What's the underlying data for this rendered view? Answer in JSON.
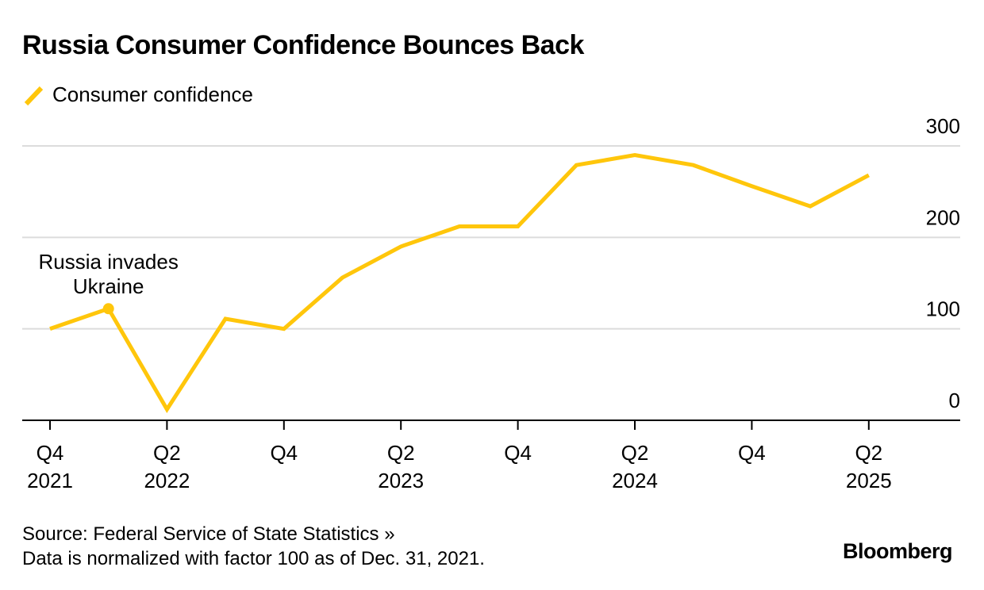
{
  "chart_data": {
    "type": "line",
    "title": "Russia Consumer Confidence Bounces Back",
    "xlabel": "",
    "ylabel": "",
    "ylim": [
      0,
      300
    ],
    "yticks": [
      0,
      100,
      200,
      300
    ],
    "grid": true,
    "legend_position": "top-left",
    "x": [
      "Q4 2021",
      "Q1 2022",
      "Q2 2022",
      "Q3 2022",
      "Q4 2022",
      "Q1 2023",
      "Q2 2023",
      "Q3 2023",
      "Q4 2023",
      "Q1 2024",
      "Q2 2024",
      "Q3 2024",
      "Q4 2024",
      "Q1 2025",
      "Q2 2025"
    ],
    "xtick_labels": [
      {
        "index": 0,
        "line1": "Q4",
        "line2": "2021"
      },
      {
        "index": 2,
        "line1": "Q2",
        "line2": "2022"
      },
      {
        "index": 4,
        "line1": "Q4",
        "line2": ""
      },
      {
        "index": 6,
        "line1": "Q2",
        "line2": "2023"
      },
      {
        "index": 8,
        "line1": "Q4",
        "line2": ""
      },
      {
        "index": 10,
        "line1": "Q2",
        "line2": "2024"
      },
      {
        "index": 12,
        "line1": "Q4",
        "line2": ""
      },
      {
        "index": 14,
        "line1": "Q2",
        "line2": "2025"
      }
    ],
    "series": [
      {
        "name": "Consumer confidence",
        "color": "#FFC60B",
        "values": [
          100,
          122,
          12,
          111,
          100,
          156,
          190,
          212,
          212,
          279,
          290,
          279,
          256,
          234,
          268
        ]
      }
    ],
    "annotations": [
      {
        "index": 1,
        "line1": "Russia invades",
        "line2": "Ukraine"
      }
    ]
  },
  "legend": {
    "label": "Consumer confidence",
    "icon": "line-swatch-icon"
  },
  "footer": {
    "source": "Source: Federal Service of State Statistics »",
    "note": "Data is normalized with factor 100 as of Dec. 31, 2021."
  },
  "brand": "Bloomberg",
  "colors": {
    "line": "#FFC60B",
    "grid": "#DCDCDC",
    "axis": "#000000"
  }
}
